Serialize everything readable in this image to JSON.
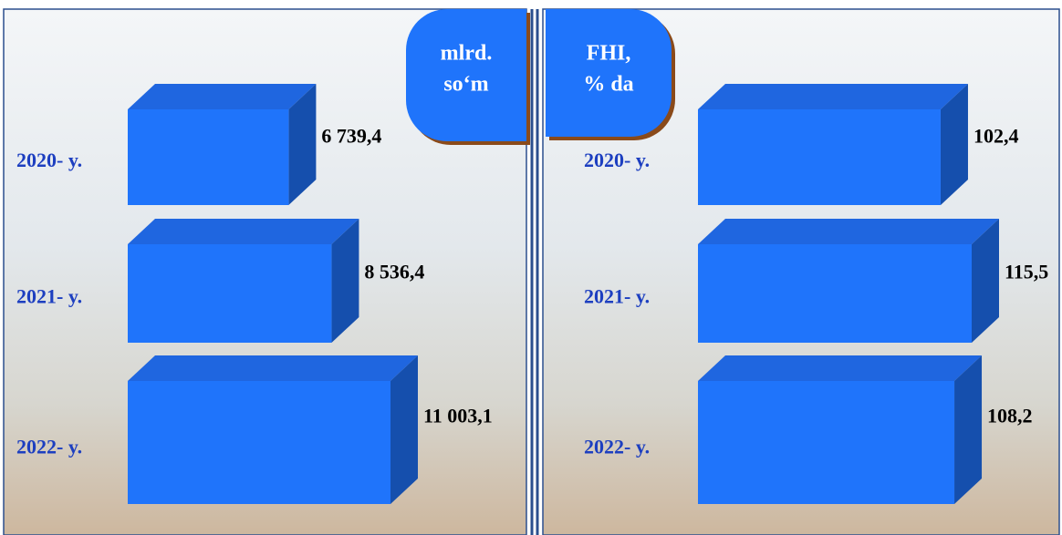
{
  "chart_data": [
    {
      "type": "bar",
      "title": [
        "mlrd.",
        "so‘m"
      ],
      "categories": [
        "2020- y.",
        "2021- y.",
        "2022- y."
      ],
      "values": [
        6739.4,
        8536.4,
        11003.1
      ],
      "value_labels": [
        "6 739,4",
        "8 536,4",
        "11 003,1"
      ],
      "color": "#1f74fb"
    },
    {
      "type": "bar",
      "title": [
        "FHI,",
        "% da"
      ],
      "categories": [
        "2020- y.",
        "2021- y.",
        "2022- y."
      ],
      "values": [
        102.4,
        115.5,
        108.2
      ],
      "value_labels": [
        "102,4",
        "115,5",
        "108,2"
      ],
      "color": "#1f74fb"
    }
  ]
}
